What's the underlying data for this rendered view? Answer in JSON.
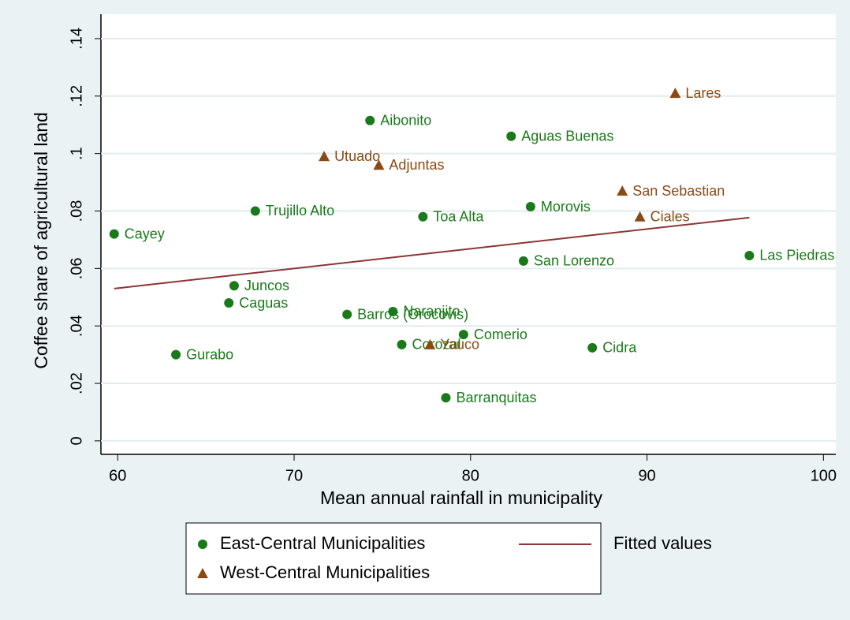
{
  "chart_data": {
    "type": "scatter",
    "xlabel": "Mean annual rainfall in municipality",
    "ylabel": "Coffee share of agricultural land",
    "xlim": [
      59.05,
      100.7
    ],
    "ylim": [
      -0.0047,
      0.1485
    ],
    "xticks": [
      60,
      70,
      80,
      90,
      100
    ],
    "yticks": [
      0,
      {
        "value": 0.02,
        "label": ".02"
      },
      {
        "value": 0.04,
        "label": ".04"
      },
      {
        "value": 0.06,
        "label": ".06"
      },
      {
        "value": 0.08,
        "label": ".08"
      },
      {
        "value": 0.1,
        "label": ".1"
      },
      {
        "value": 0.12,
        "label": ".12"
      },
      {
        "value": 0.14,
        "label": ".14"
      }
    ],
    "grid": true,
    "series": [
      {
        "name": "East-Central Municipalities",
        "type": "scatter",
        "marker": "circle",
        "color": "#1a7a1a",
        "labels": [
          "Cayey",
          "Trujillo Alto",
          "Juncos",
          "Caguas",
          "Gurabo",
          "Aibonito",
          "Barros (Orocovis)",
          "Naranjito",
          "Corozal",
          "Toa Alta",
          "Comerio",
          "Barranquitas",
          "Aguas Buenas",
          "Morovis",
          "San Lorenzo",
          "Cidra",
          "Las Piedras"
        ],
        "x": [
          59.8,
          67.8,
          66.6,
          66.3,
          63.3,
          74.3,
          73.0,
          75.6,
          76.1,
          77.3,
          79.6,
          78.6,
          82.3,
          83.4,
          83.0,
          86.9,
          95.8
        ],
        "values": [
          0.072,
          0.08,
          0.054,
          0.048,
          0.03,
          0.1115,
          0.044,
          0.045,
          0.0335,
          0.078,
          0.037,
          0.015,
          0.106,
          0.0815,
          0.0626,
          0.0324,
          0.0645
        ]
      },
      {
        "name": "West-Central Municipalities",
        "type": "scatter",
        "marker": "triangle",
        "color": "#8b4a14",
        "labels": [
          "Utuado",
          "Adjuntas",
          "Yauco",
          "Lares",
          "San Sebastian",
          "Ciales"
        ],
        "x": [
          71.7,
          74.8,
          77.7,
          91.6,
          88.6,
          89.6
        ],
        "values": [
          0.099,
          0.096,
          0.0335,
          0.121,
          0.087,
          0.078
        ]
      },
      {
        "name": "Fitted values",
        "type": "line",
        "color": "#8c3535",
        "x": [
          59.8,
          95.8
        ],
        "values": [
          0.053,
          0.0777
        ]
      }
    ]
  }
}
